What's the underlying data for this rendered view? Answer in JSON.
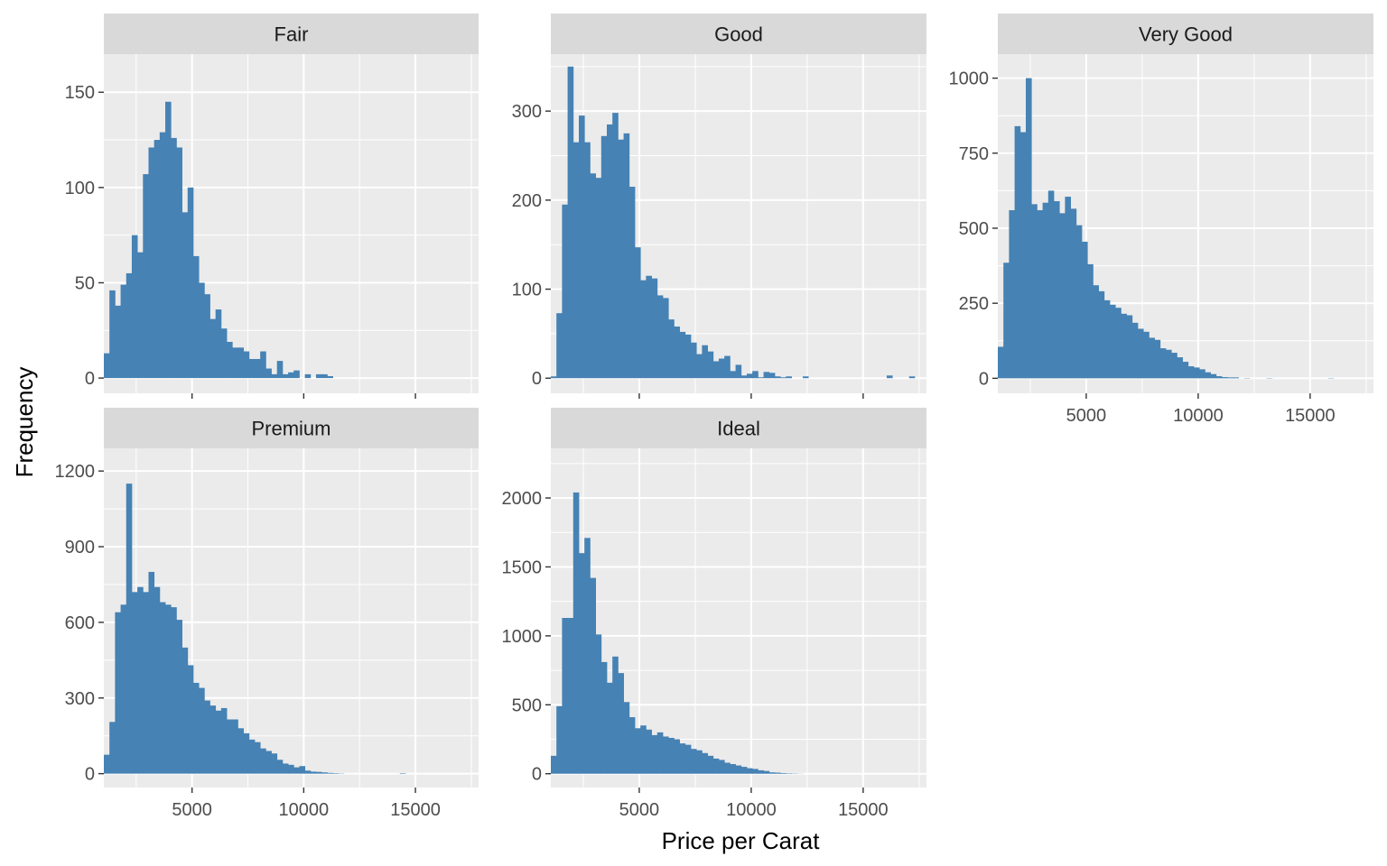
{
  "chart_data": {
    "type": "bar",
    "subtype": "faceted-histogram",
    "xlabel": "Price per Carat",
    "ylabel": "Frequency",
    "bar_color": "#4682B4",
    "panel_background": "#EBEBEB",
    "strip_background": "#D9D9D9",
    "grid": true,
    "shared_x_axis": true,
    "xlim": [
      1051,
      17828
    ],
    "x_ticks": [
      5000,
      10000,
      15000
    ],
    "bin_width": 250,
    "bin_start": 1051,
    "facets": [
      {
        "name": "Fair",
        "ylim": [
          -8,
          170
        ],
        "y_ticks": [
          0,
          50,
          100,
          150
        ],
        "values": [
          13,
          46,
          38,
          49,
          55,
          75,
          66,
          107,
          121,
          125,
          129,
          145,
          126,
          121,
          87,
          100,
          64,
          50,
          44,
          31,
          36,
          26,
          19,
          16,
          16,
          14,
          10,
          10,
          14,
          5,
          2,
          9,
          2,
          3,
          4,
          0,
          2,
          0,
          2,
          2,
          1,
          0,
          0,
          0,
          0,
          0,
          0,
          0,
          0,
          0,
          0,
          0,
          0,
          0,
          0,
          0,
          0,
          0,
          0,
          0,
          0,
          0,
          0,
          0,
          0,
          0,
          0,
          0,
          0
        ]
      },
      {
        "name": "Good",
        "ylim": [
          -17,
          364
        ],
        "y_ticks": [
          0,
          100,
          200,
          300
        ],
        "values": [
          2,
          73,
          195,
          350,
          265,
          295,
          265,
          230,
          225,
          272,
          285,
          298,
          268,
          275,
          215,
          147,
          110,
          115,
          112,
          93,
          90,
          66,
          58,
          52,
          49,
          40,
          27,
          37,
          30,
          19,
          22,
          25,
          8,
          15,
          3,
          5,
          8,
          1,
          7,
          6,
          2,
          1,
          2,
          0,
          0,
          2,
          0,
          0,
          0,
          0,
          0,
          0,
          0,
          0,
          0,
          0,
          0,
          0,
          0,
          0,
          3,
          0,
          0,
          0,
          2,
          0,
          0,
          0,
          0
        ]
      },
      {
        "name": "Very Good",
        "ylim": [
          -50,
          1080
        ],
        "y_ticks": [
          0,
          250,
          500,
          750,
          1000
        ],
        "values": [
          105,
          385,
          560,
          840,
          820,
          1000,
          580,
          560,
          585,
          625,
          590,
          550,
          605,
          565,
          510,
          455,
          380,
          310,
          290,
          260,
          245,
          235,
          215,
          210,
          185,
          165,
          155,
          135,
          128,
          100,
          95,
          85,
          70,
          55,
          40,
          36,
          30,
          20,
          14,
          7,
          4,
          3,
          3,
          0,
          1,
          0,
          0,
          0,
          1,
          0,
          0,
          0,
          0,
          0,
          0,
          0,
          0,
          0,
          0,
          1,
          0,
          0,
          0,
          0,
          0,
          0,
          0,
          0,
          0
        ]
      },
      {
        "name": "Premium",
        "ylim": [
          -55,
          1290
        ],
        "y_ticks": [
          0,
          300,
          600,
          900,
          1200
        ],
        "values": [
          75,
          205,
          640,
          670,
          1150,
          720,
          740,
          720,
          800,
          740,
          680,
          670,
          660,
          610,
          500,
          430,
          360,
          340,
          290,
          270,
          250,
          260,
          215,
          215,
          180,
          160,
          135,
          125,
          100,
          90,
          80,
          55,
          40,
          35,
          25,
          30,
          12,
          8,
          7,
          5,
          3,
          2,
          1,
          0,
          0,
          0,
          0,
          0,
          0,
          0,
          0,
          0,
          0,
          2,
          0,
          0,
          0,
          0,
          0,
          0,
          0,
          0,
          0,
          0,
          0,
          0,
          0,
          0,
          0
        ]
      },
      {
        "name": "Ideal",
        "ylim": [
          -100,
          2360
        ],
        "y_ticks": [
          0,
          500,
          1000,
          1500,
          2000
        ],
        "values": [
          130,
          490,
          1130,
          1130,
          2040,
          1600,
          1710,
          1420,
          1010,
          810,
          660,
          850,
          730,
          520,
          410,
          330,
          350,
          320,
          280,
          300,
          270,
          260,
          250,
          220,
          210,
          180,
          170,
          150,
          130,
          110,
          100,
          80,
          70,
          60,
          50,
          40,
          35,
          25,
          20,
          10,
          8,
          5,
          3,
          2,
          1,
          0,
          0,
          0,
          0,
          0,
          0,
          0,
          0,
          0,
          0,
          0,
          0,
          0,
          0,
          0,
          0,
          0,
          0,
          0,
          0,
          0,
          0,
          0,
          0
        ]
      }
    ]
  }
}
